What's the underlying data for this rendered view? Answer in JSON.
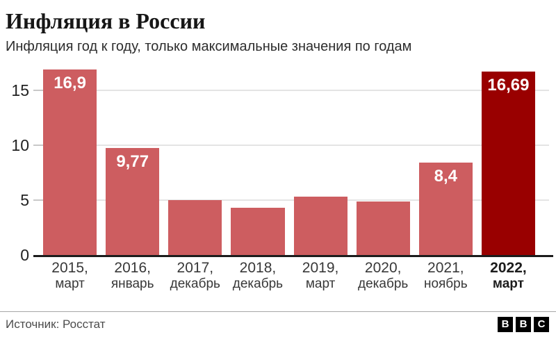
{
  "header": {
    "title": "Инфляция в России",
    "subtitle": "Инфляция год к году, только максимальные значения по годам"
  },
  "chart_data": {
    "type": "bar",
    "title": "Инфляция в России",
    "subtitle": "Инфляция год к году, только максимальные значения по годам",
    "categories": [
      "2015, март",
      "2016, январь",
      "2017, декабрь",
      "2018, декабрь",
      "2019, март",
      "2020, декабрь",
      "2021, ноябрь",
      "2022, март"
    ],
    "category_lines": [
      [
        "2015,",
        "март"
      ],
      [
        "2016,",
        "январь"
      ],
      [
        "2017,",
        "декабрь"
      ],
      [
        "2018,",
        "декабрь"
      ],
      [
        "2019,",
        "март"
      ],
      [
        "2020,",
        "декабрь"
      ],
      [
        "2021,",
        "ноябрь"
      ],
      [
        "2022,",
        "март"
      ]
    ],
    "values": [
      16.9,
      9.77,
      5.0,
      4.3,
      5.3,
      4.9,
      8.4,
      16.69
    ],
    "value_labels": [
      "16,9",
      "9,77",
      "",
      "",
      "",
      "",
      "8,4",
      "16,69"
    ],
    "highlight_index": 7,
    "yticks": [
      0,
      5,
      10,
      15
    ],
    "ylim": [
      0,
      17.1
    ],
    "xlabel": "",
    "ylabel": "",
    "grid": "horizontal",
    "legend": "none",
    "bar_color": "#cd5d60",
    "highlight_color": "#990000"
  },
  "footer": {
    "source": "Источник: Росстат",
    "logo_letters": [
      "B",
      "B",
      "C"
    ]
  }
}
